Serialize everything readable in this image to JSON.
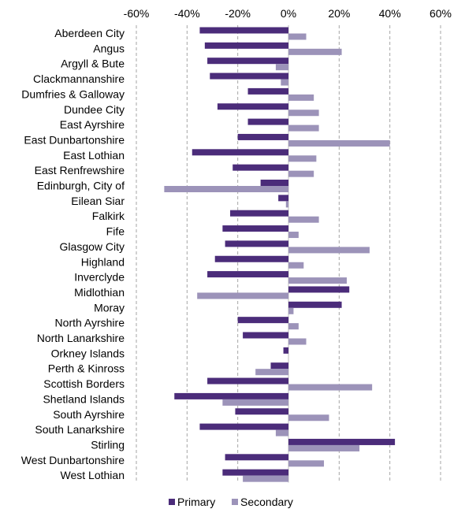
{
  "chart_data": {
    "type": "bar",
    "orientation": "horizontal",
    "categories": [
      "Aberdeen City",
      "Angus",
      "Argyll & Bute",
      "Clackmannanshire",
      "Dumfries & Galloway",
      "Dundee City",
      "East Ayrshire",
      "East Dunbartonshire",
      "East Lothian",
      "East Renfrewshire",
      "Edinburgh, City of",
      "Eilean Siar",
      "Falkirk",
      "Fife",
      "Glasgow City",
      "Highland",
      "Inverclyde",
      "Midlothian",
      "Moray",
      "North Ayrshire",
      "North Lanarkshire",
      "Orkney Islands",
      "Perth & Kinross",
      "Scottish Borders",
      "Shetland Islands",
      "South Ayrshire",
      "South Lanarkshire",
      "Stirling",
      "West Dunbartonshire",
      "West Lothian"
    ],
    "series": [
      {
        "name": "Primary",
        "color": "#4B2C7A",
        "values": [
          -35,
          -33,
          -32,
          -31,
          -16,
          -28,
          -16,
          -20,
          -38,
          -22,
          -11,
          -4,
          -23,
          -26,
          -25,
          -29,
          -32,
          24,
          21,
          -20,
          -18,
          -2,
          -7,
          -32,
          -45,
          -21,
          -35,
          42,
          -25,
          -26
        ]
      },
      {
        "name": "Secondary",
        "color": "#9C93B9",
        "values": [
          7,
          21,
          -5,
          -3,
          10,
          12,
          12,
          40,
          11,
          10,
          -49,
          -1,
          12,
          4,
          32,
          6,
          23,
          -36,
          2,
          4,
          7,
          0,
          -13,
          33,
          -26,
          16,
          -5,
          28,
          14,
          -18
        ]
      }
    ],
    "xlim": [
      -60,
      60
    ],
    "ticks": [
      "-60%",
      "-40%",
      "-20%",
      "0%",
      "20%",
      "40%",
      "60%"
    ],
    "tick_values": [
      -60,
      -40,
      -20,
      0,
      20,
      40,
      60
    ],
    "grid": "vertical dashed",
    "legend_position": "bottom"
  }
}
